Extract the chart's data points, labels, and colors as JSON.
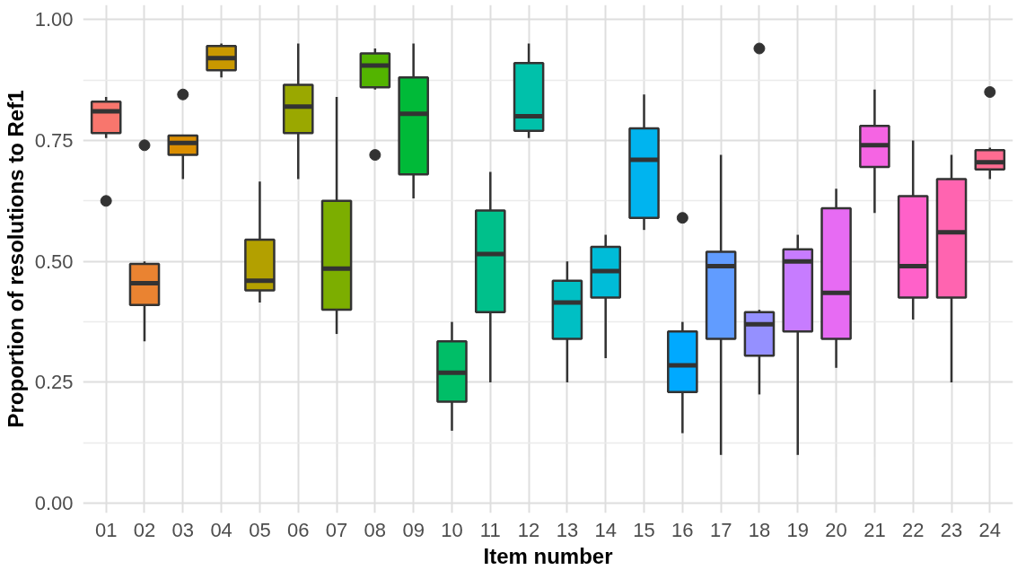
{
  "chart_data": {
    "type": "box",
    "xlabel": "Item number",
    "ylabel": "Proportion of resolutions to Ref1",
    "categories": [
      "01",
      "02",
      "03",
      "04",
      "05",
      "06",
      "07",
      "08",
      "09",
      "10",
      "11",
      "12",
      "13",
      "14",
      "15",
      "16",
      "17",
      "18",
      "19",
      "20",
      "21",
      "22",
      "23",
      "24"
    ],
    "colors": [
      "#f8766d",
      "#ea8331",
      "#db8e00",
      "#c99800",
      "#b3a000",
      "#9aa800",
      "#7cae00",
      "#53b400",
      "#00ba38",
      "#00be67",
      "#00c08b",
      "#00c1aa",
      "#00bfc4",
      "#00bcd8",
      "#00b4ef",
      "#00a9ff",
      "#619cff",
      "#9590ff",
      "#c77cff",
      "#e76bf3",
      "#f564e3",
      "#ff61c9",
      "#ff64b0",
      "#ff6c91"
    ],
    "boxes": [
      {
        "low": 0.755,
        "q1": 0.765,
        "median": 0.81,
        "q3": 0.83,
        "high": 0.84,
        "outliers": [
          0.625
        ]
      },
      {
        "low": 0.335,
        "q1": 0.41,
        "median": 0.455,
        "q3": 0.495,
        "high": 0.5,
        "outliers": [
          0.74
        ]
      },
      {
        "low": 0.67,
        "q1": 0.72,
        "median": 0.745,
        "q3": 0.76,
        "high": 0.76,
        "outliers": [
          0.845
        ]
      },
      {
        "low": 0.88,
        "q1": 0.895,
        "median": 0.92,
        "q3": 0.945,
        "high": 0.95
      },
      {
        "low": 0.415,
        "q1": 0.44,
        "median": 0.46,
        "q3": 0.545,
        "high": 0.665
      },
      {
        "low": 0.67,
        "q1": 0.765,
        "median": 0.82,
        "q3": 0.865,
        "high": 0.95
      },
      {
        "low": 0.35,
        "q1": 0.4,
        "median": 0.485,
        "q3": 0.625,
        "high": 0.84
      },
      {
        "low": 0.855,
        "q1": 0.86,
        "median": 0.905,
        "q3": 0.93,
        "high": 0.94,
        "outliers": [
          0.72
        ]
      },
      {
        "low": 0.63,
        "q1": 0.68,
        "median": 0.805,
        "q3": 0.88,
        "high": 0.95
      },
      {
        "low": 0.15,
        "q1": 0.21,
        "median": 0.27,
        "q3": 0.335,
        "high": 0.375
      },
      {
        "low": 0.25,
        "q1": 0.395,
        "median": 0.515,
        "q3": 0.605,
        "high": 0.685
      },
      {
        "low": 0.755,
        "q1": 0.77,
        "median": 0.8,
        "q3": 0.91,
        "high": 0.95
      },
      {
        "low": 0.25,
        "q1": 0.34,
        "median": 0.415,
        "q3": 0.46,
        "high": 0.5
      },
      {
        "low": 0.3,
        "q1": 0.425,
        "median": 0.48,
        "q3": 0.53,
        "high": 0.555
      },
      {
        "low": 0.565,
        "q1": 0.59,
        "median": 0.71,
        "q3": 0.775,
        "high": 0.845
      },
      {
        "low": 0.145,
        "q1": 0.23,
        "median": 0.285,
        "q3": 0.355,
        "high": 0.375,
        "outliers": [
          0.59
        ]
      },
      {
        "low": 0.1,
        "q1": 0.34,
        "median": 0.49,
        "q3": 0.52,
        "high": 0.72
      },
      {
        "low": 0.225,
        "q1": 0.305,
        "median": 0.37,
        "q3": 0.395,
        "high": 0.4,
        "outliers": [
          0.94
        ]
      },
      {
        "low": 0.1,
        "q1": 0.355,
        "median": 0.5,
        "q3": 0.525,
        "high": 0.555
      },
      {
        "low": 0.28,
        "q1": 0.34,
        "median": 0.435,
        "q3": 0.61,
        "high": 0.65
      },
      {
        "low": 0.6,
        "q1": 0.695,
        "median": 0.74,
        "q3": 0.78,
        "high": 0.855
      },
      {
        "low": 0.38,
        "q1": 0.425,
        "median": 0.49,
        "q3": 0.635,
        "high": 0.75
      },
      {
        "low": 0.25,
        "q1": 0.425,
        "median": 0.56,
        "q3": 0.67,
        "high": 0.72
      },
      {
        "low": 0.67,
        "q1": 0.69,
        "median": 0.705,
        "q3": 0.73,
        "high": 0.735,
        "outliers": [
          0.85
        ]
      }
    ],
    "ylim": [
      -0.02,
      1.03
    ],
    "yticks": [
      {
        "value": 0,
        "label": "0.00"
      },
      {
        "value": 0.25,
        "label": "0.25"
      },
      {
        "value": 0.5,
        "label": "0.50"
      },
      {
        "value": 0.75,
        "label": "0.75"
      },
      {
        "value": 1,
        "label": "1.00"
      }
    ],
    "grid": true
  }
}
